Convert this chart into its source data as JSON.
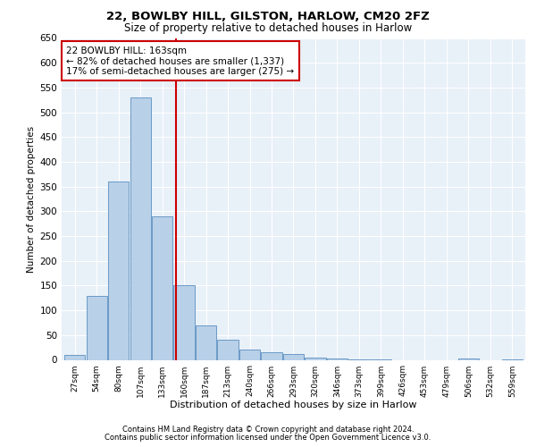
{
  "title1": "22, BOWLBY HILL, GILSTON, HARLOW, CM20 2FZ",
  "title2": "Size of property relative to detached houses in Harlow",
  "xlabel": "Distribution of detached houses by size in Harlow",
  "ylabel": "Number of detached properties",
  "categories": [
    "27sqm",
    "54sqm",
    "80sqm",
    "107sqm",
    "133sqm",
    "160sqm",
    "187sqm",
    "213sqm",
    "240sqm",
    "266sqm",
    "293sqm",
    "320sqm",
    "346sqm",
    "373sqm",
    "399sqm",
    "426sqm",
    "453sqm",
    "479sqm",
    "506sqm",
    "532sqm",
    "559sqm"
  ],
  "values": [
    10,
    130,
    360,
    530,
    290,
    150,
    70,
    40,
    20,
    15,
    12,
    5,
    2,
    1,
    1,
    0,
    0,
    0,
    2,
    0,
    1
  ],
  "bar_color": "#b8d0e8",
  "bar_edge_color": "#5a8fc0",
  "vline_color": "#cc0000",
  "annotation_line1": "22 BOWLBY HILL: 163sqm",
  "annotation_line2": "← 82% of detached houses are smaller (1,337)",
  "annotation_line3": "17% of semi-detached houses are larger (275) →",
  "annotation_box_edgecolor": "#cc0000",
  "ylim_max": 650,
  "ytick_step": 50,
  "bg_color": "#e8f0f8",
  "footer1": "Contains HM Land Registry data © Crown copyright and database right 2024.",
  "footer2": "Contains public sector information licensed under the Open Government Licence v3.0."
}
